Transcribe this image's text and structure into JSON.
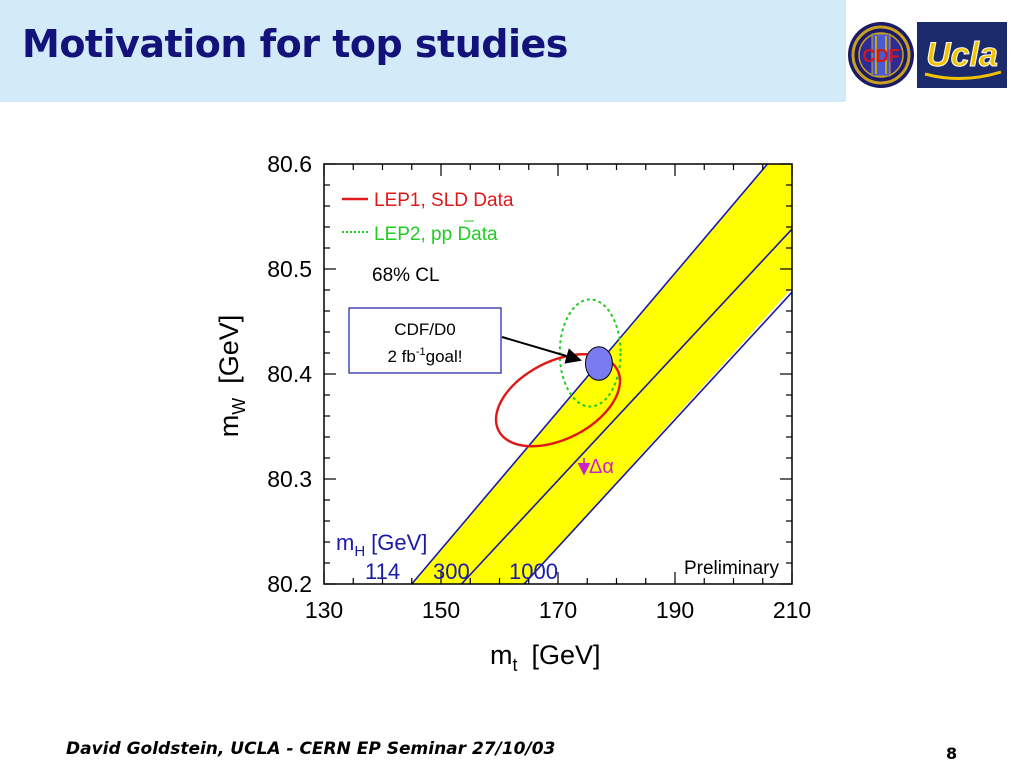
{
  "slide": {
    "title": "Motivation for top studies",
    "footer": "David Goldstein, UCLA - CERN EP Seminar 27/10/03",
    "page_number": "8",
    "logos": {
      "cdf": "CDF",
      "ucla": "Ucla"
    }
  },
  "colors": {
    "title": "#12127a",
    "title_bg": "#d3eaf8",
    "band_fill": "#ffff00",
    "band_line": "#1a1aa8",
    "lep1": "#e01818",
    "lep2": "#22cc22",
    "ellipse_fill": "#7b7bf0",
    "mh_text": "#1a1aa8",
    "delta_alpha": "#cc22cc"
  },
  "chart_data": {
    "type": "scatter",
    "xlabel_main": "m",
    "xlabel_sub": "t",
    "xlabel_unit": "[GeV]",
    "ylabel_main": "m",
    "ylabel_sub": "W",
    "ylabel_unit": "[GeV]",
    "xlim": [
      130,
      210
    ],
    "ylim": [
      80.2,
      80.6
    ],
    "xticks": [
      130,
      150,
      170,
      190,
      210
    ],
    "xtick_labels": [
      "130",
      "150",
      "170",
      "190",
      "210"
    ],
    "yticks": [
      80.2,
      80.3,
      80.4,
      80.5,
      80.6
    ],
    "ytick_labels": [
      "80.2",
      "80.3",
      "80.4",
      "80.5",
      "80.6"
    ],
    "legend": [
      {
        "label": "LEP1, SLD Data",
        "style": "solid",
        "color": "#e01818"
      },
      {
        "label": "LEP2, pp Data",
        "style": "dotted",
        "color": "#22cc22"
      }
    ],
    "cl_label": "68% CL",
    "preliminary_label": "Preliminary",
    "delta_alpha_label": "Δα",
    "higgs_title": "m",
    "higgs_sub": "H",
    "higgs_unit": "[GeV]",
    "higgs_lines": [
      {
        "mh": "114",
        "line": [
          [
            145.0,
            80.2
          ],
          [
            205.8,
            80.6
          ]
        ]
      },
      {
        "mh": "300",
        "line": [
          [
            153.5,
            80.2
          ],
          [
            212.0,
            80.55
          ]
        ]
      },
      {
        "mh": "1000",
        "line": [
          [
            164.2,
            80.2
          ],
          [
            212.0,
            80.49
          ]
        ]
      }
    ],
    "band_polygon": [
      [
        145.0,
        80.2
      ],
      [
        205.8,
        80.6
      ],
      [
        210,
        80.6
      ],
      [
        210,
        80.482
      ],
      [
        164.2,
        80.2
      ]
    ],
    "lep1_ellipse": {
      "center": [
        170,
        80.375
      ],
      "rx": 11.4,
      "ry": 0.037,
      "angle_deg": -27
    },
    "lep2_circle": {
      "center": [
        175.5,
        80.42
      ],
      "rx": 5.2,
      "ry": 0.051
    },
    "cdf_d0_ellipse": {
      "center": [
        177,
        80.41
      ],
      "rx": 2.3,
      "ry": 0.016
    },
    "annotation": {
      "line1": "CDF/D0",
      "line2_prefix": "2 fb",
      "line2_sup": "-1",
      "line2_suffix": "goal!"
    }
  }
}
